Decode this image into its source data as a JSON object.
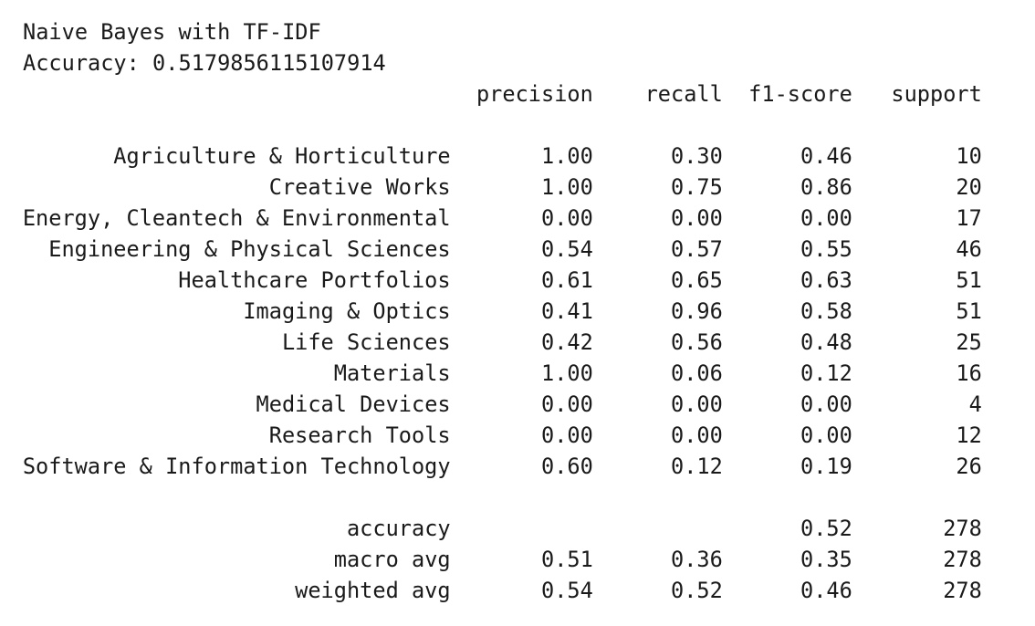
{
  "header": {
    "title": "Naive Bayes with TF-IDF",
    "accuracy": "Accuracy: 0.5179856115107914"
  },
  "table": {
    "columns": {
      "precision": "precision",
      "recall": "recall",
      "f1": "f1-score",
      "support": "support"
    },
    "rows": [
      {
        "label": "Agriculture & Horticulture",
        "precision": "1.00",
        "recall": "0.30",
        "f1": "0.46",
        "support": "10"
      },
      {
        "label": "Creative Works",
        "precision": "1.00",
        "recall": "0.75",
        "f1": "0.86",
        "support": "20"
      },
      {
        "label": "Energy, Cleantech & Environmental",
        "precision": "0.00",
        "recall": "0.00",
        "f1": "0.00",
        "support": "17"
      },
      {
        "label": "Engineering & Physical Sciences",
        "precision": "0.54",
        "recall": "0.57",
        "f1": "0.55",
        "support": "46"
      },
      {
        "label": "Healthcare Portfolios",
        "precision": "0.61",
        "recall": "0.65",
        "f1": "0.63",
        "support": "51"
      },
      {
        "label": "Imaging & Optics",
        "precision": "0.41",
        "recall": "0.96",
        "f1": "0.58",
        "support": "51"
      },
      {
        "label": "Life Sciences",
        "precision": "0.42",
        "recall": "0.56",
        "f1": "0.48",
        "support": "25"
      },
      {
        "label": "Materials",
        "precision": "1.00",
        "recall": "0.06",
        "f1": "0.12",
        "support": "16"
      },
      {
        "label": "Medical Devices",
        "precision": "0.00",
        "recall": "0.00",
        "f1": "0.00",
        "support": "4"
      },
      {
        "label": "Research Tools",
        "precision": "0.00",
        "recall": "0.00",
        "f1": "0.00",
        "support": "12"
      },
      {
        "label": "Software & Information Technology",
        "precision": "0.60",
        "recall": "0.12",
        "f1": "0.19",
        "support": "26"
      }
    ],
    "summary": [
      {
        "label": "accuracy",
        "f1": "0.52",
        "support": "278"
      },
      {
        "label": "macro avg",
        "precision": "0.51",
        "recall": "0.36",
        "f1": "0.35",
        "support": "278"
      },
      {
        "label": "weighted avg",
        "precision": "0.54",
        "recall": "0.52",
        "f1": "0.46",
        "support": "278"
      }
    ]
  }
}
